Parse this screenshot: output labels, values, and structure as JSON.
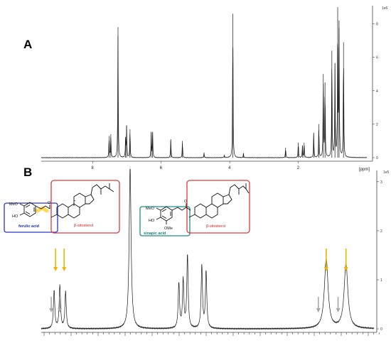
{
  "panels": [
    {
      "label": "A",
      "x_unit": "[ppm]",
      "x_ticks": [
        "8",
        "6",
        "4",
        "2"
      ],
      "y_ticks": [
        "0",
        "2",
        "4",
        "6",
        "8"
      ],
      "y_unit": "1e6"
    },
    {
      "label": "B",
      "y_ticks": [
        "0",
        "1",
        "2",
        "3"
      ],
      "y_unit": "1e5"
    }
  ],
  "structures": {
    "ferulic_label": "ferulic acid",
    "sinapic_label": "sinapic acid",
    "sitosterol_label_1": "β-sitosterol",
    "sitosterol_label_2": "β-sitosterol",
    "meo": "MeO",
    "ho": "HO",
    "ome": "OMe",
    "o": "O"
  },
  "colors": {
    "ferulic_box": "#2b35c8",
    "sitosterol_box": "#e03a3a",
    "sinapic_box": "#1e8c86",
    "highlight": "#ffd23a",
    "arrow_gold": "#f0b400",
    "arrow_gray": "#a8a8a8"
  },
  "chart_data": [
    {
      "type": "line",
      "panel": "A",
      "x_axis_reversed": true,
      "xlim": [
        9.5,
        0
      ],
      "ylim": [
        0,
        9
      ],
      "peaks": [
        {
          "x": 7.52,
          "h": 1.3
        },
        {
          "x": 7.47,
          "h": 1.4
        },
        {
          "x": 7.26,
          "h": 7.8
        },
        {
          "x": 7.04,
          "h": 1.1
        },
        {
          "x": 7.01,
          "h": 1.9
        },
        {
          "x": 6.91,
          "h": 1.7
        },
        {
          "x": 6.29,
          "h": 1.5
        },
        {
          "x": 6.25,
          "h": 1.5
        },
        {
          "x": 5.72,
          "h": 1.1
        },
        {
          "x": 5.38,
          "h": 1.0
        },
        {
          "x": 4.75,
          "h": 0.3
        },
        {
          "x": 4.16,
          "h": 0.15
        },
        {
          "x": 3.91,
          "h": 8.6
        },
        {
          "x": 3.6,
          "h": 0.25
        },
        {
          "x": 2.37,
          "h": 0.6
        },
        {
          "x": 2.0,
          "h": 0.9
        },
        {
          "x": 1.88,
          "h": 0.7
        },
        {
          "x": 1.83,
          "h": 0.9
        },
        {
          "x": 1.55,
          "h": 1.5
        },
        {
          "x": 1.4,
          "h": 2.0
        },
        {
          "x": 1.27,
          "h": 5.0
        },
        {
          "x": 1.22,
          "h": 4.5
        },
        {
          "x": 1.02,
          "h": 6.4
        },
        {
          "x": 0.93,
          "h": 5.6
        },
        {
          "x": 0.85,
          "h": 9.0
        },
        {
          "x": 0.81,
          "h": 8.2
        },
        {
          "x": 0.68,
          "h": 6.9
        }
      ]
    },
    {
      "type": "line",
      "panel": "B",
      "x_axis_reversed": true,
      "ylim": [
        0,
        3.2
      ],
      "peaks": [
        {
          "x": 7.525,
          "h": 0.78
        },
        {
          "x": 7.505,
          "h": 0.88
        },
        {
          "x": 7.485,
          "h": 0.75
        },
        {
          "x": 7.26,
          "h": 3.3
        },
        {
          "x": 7.09,
          "h": 0.92
        },
        {
          "x": 7.075,
          "h": 0.98
        },
        {
          "x": 7.06,
          "h": 1.5
        },
        {
          "x": 7.01,
          "h": 1.28
        },
        {
          "x": 6.995,
          "h": 1.17
        },
        {
          "x": 6.305,
          "h": 1.42
        },
        {
          "x": 6.28,
          "h": 1.33
        }
      ],
      "annotations": [
        {
          "type": "arrow",
          "color": "gold",
          "near_x": 7.52
        },
        {
          "type": "arrow",
          "color": "gold",
          "near_x": 7.49
        },
        {
          "type": "arrow",
          "color": "gray",
          "near_x": 7.535
        },
        {
          "type": "arrow",
          "color": "gray",
          "near_x": 7.505
        },
        {
          "type": "arrow",
          "color": "gold",
          "near_x": 6.305
        },
        {
          "type": "arrow",
          "color": "gold",
          "near_x": 6.28
        },
        {
          "type": "arrow",
          "color": "gray",
          "near_x": 6.315
        },
        {
          "type": "arrow",
          "color": "gray",
          "near_x": 6.29
        }
      ]
    }
  ]
}
